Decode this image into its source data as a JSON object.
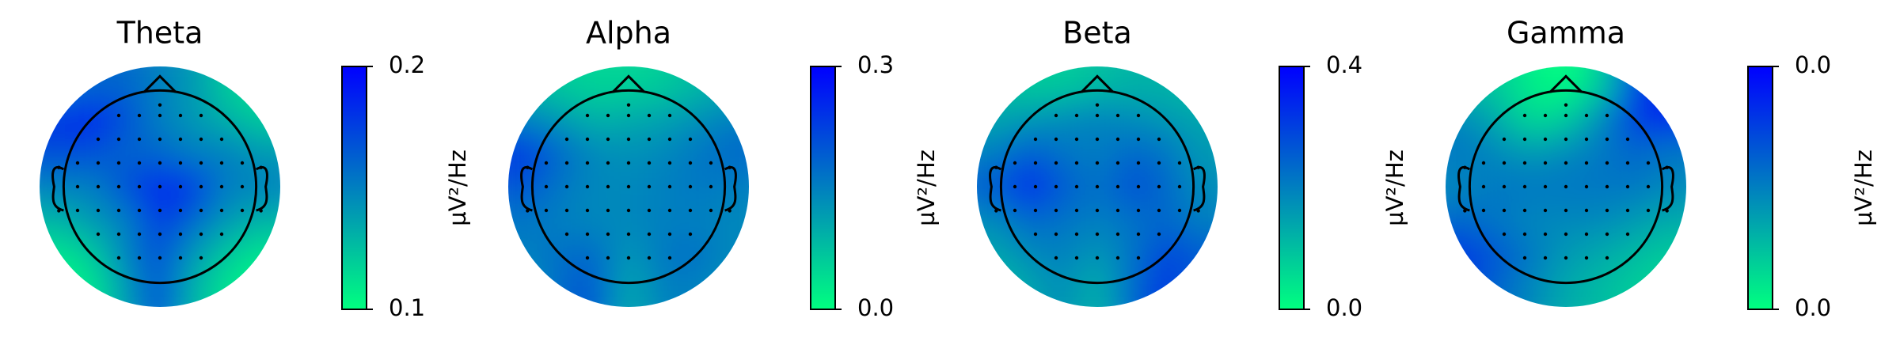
{
  "chart_data": [
    {
      "type": "heatmap",
      "title": "Theta",
      "colorbar_label": "µV²/Hz",
      "colormap": [
        "#00ff80",
        "#0000ff"
      ],
      "zlim": [
        0.1,
        0.2
      ],
      "zticks": [
        0.1,
        0.2
      ],
      "z": [
        [
          0.15,
          0.16,
          0.16,
          0.15,
          0.14,
          0.12,
          0.11
        ],
        [
          0.18,
          0.19,
          0.17,
          0.15,
          0.14,
          0.13,
          0.12
        ],
        [
          0.17,
          0.17,
          0.16,
          0.16,
          0.15,
          0.15,
          0.14
        ],
        [
          0.15,
          0.15,
          0.17,
          0.19,
          0.18,
          0.15,
          0.15
        ],
        [
          0.13,
          0.14,
          0.15,
          0.18,
          0.16,
          0.14,
          0.13
        ],
        [
          0.11,
          0.12,
          0.15,
          0.17,
          0.14,
          0.12,
          0.11
        ],
        [
          0.1,
          0.11,
          0.14,
          0.17,
          0.13,
          0.11,
          0.1
        ]
      ]
    },
    {
      "type": "heatmap",
      "title": "Alpha",
      "colorbar_label": "µV²/Hz",
      "colormap": [
        "#00ff80",
        "#0000ff"
      ],
      "zlim": [
        0,
        0.3
      ],
      "zticks": [
        {
          "value": 0,
          "label": "0.0"
        },
        0.3
      ],
      "z": [
        [
          0.08,
          0.06,
          0.05,
          0.05,
          0.06,
          0.08,
          0.1
        ],
        [
          0.15,
          0.12,
          0.09,
          0.1,
          0.11,
          0.13,
          0.15
        ],
        [
          0.24,
          0.18,
          0.14,
          0.13,
          0.14,
          0.16,
          0.18
        ],
        [
          0.2,
          0.16,
          0.14,
          0.14,
          0.15,
          0.16,
          0.15
        ],
        [
          0.16,
          0.15,
          0.14,
          0.14,
          0.15,
          0.15,
          0.14
        ],
        [
          0.15,
          0.17,
          0.18,
          0.12,
          0.16,
          0.17,
          0.14
        ],
        [
          0.12,
          0.18,
          0.2,
          0.1,
          0.15,
          0.15,
          0.12
        ]
      ]
    },
    {
      "type": "heatmap",
      "title": "Beta",
      "colorbar_label": "µV²/Hz",
      "colormap": [
        "#00ff80",
        "#0000ff"
      ],
      "zlim": [
        0,
        0.4
      ],
      "zticks": [
        {
          "value": 0,
          "label": "0.0"
        },
        0.4
      ],
      "z": [
        [
          0.1,
          0.08,
          0.08,
          0.1,
          0.12,
          0.12,
          0.1
        ],
        [
          0.14,
          0.16,
          0.18,
          0.2,
          0.18,
          0.16,
          0.14
        ],
        [
          0.2,
          0.26,
          0.22,
          0.2,
          0.24,
          0.22,
          0.16
        ],
        [
          0.26,
          0.36,
          0.26,
          0.22,
          0.28,
          0.24,
          0.18
        ],
        [
          0.18,
          0.24,
          0.22,
          0.2,
          0.22,
          0.24,
          0.2
        ],
        [
          0.14,
          0.18,
          0.2,
          0.16,
          0.22,
          0.3,
          0.26
        ],
        [
          0.1,
          0.14,
          0.18,
          0.12,
          0.24,
          0.32,
          0.24
        ]
      ]
    },
    {
      "type": "heatmap",
      "title": "Gamma",
      "colorbar_label": "µV²/Hz",
      "colormap": [
        "#00ff80",
        "#0000ff"
      ],
      "zlim": [
        0.001,
        0.004
      ],
      "zticks": [
        {
          "value": 0.001,
          "label": "0.0"
        },
        {
          "value": 0.004,
          "label": "0.0"
        }
      ],
      "z": [
        [
          0.0018,
          0.0016,
          0.0012,
          0.001,
          0.0016,
          0.0032,
          0.0038
        ],
        [
          0.0024,
          0.002,
          0.0014,
          0.0016,
          0.0024,
          0.0034,
          0.0036
        ],
        [
          0.0026,
          0.0024,
          0.0022,
          0.0024,
          0.0026,
          0.0028,
          0.0026
        ],
        [
          0.0024,
          0.0026,
          0.0026,
          0.0026,
          0.0026,
          0.0026,
          0.0024
        ],
        [
          0.0028,
          0.0026,
          0.0024,
          0.0024,
          0.0024,
          0.0022,
          0.002
        ],
        [
          0.0034,
          0.003,
          0.0026,
          0.0022,
          0.002,
          0.0018,
          0.0016
        ],
        [
          0.0032,
          0.0028,
          0.0024,
          0.002,
          0.0018,
          0.0016,
          0.0014
        ]
      ]
    }
  ]
}
